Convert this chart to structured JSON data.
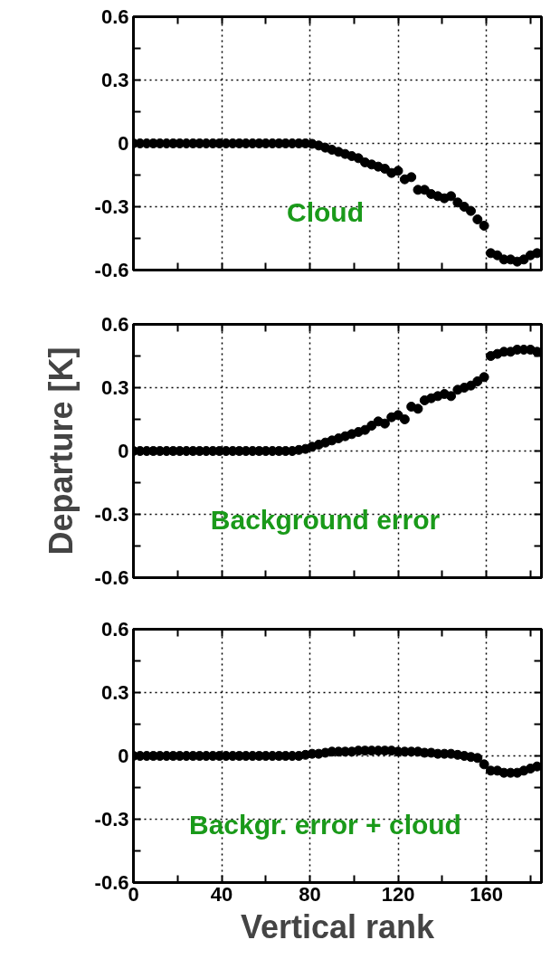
{
  "chart_data": [
    {
      "type": "scatter",
      "annotations": [
        "Cloud"
      ],
      "marker": "circle",
      "grid": true,
      "tick_labels": "y",
      "xlim": [
        0,
        185
      ],
      "ylim": [
        -0.6,
        0.6
      ],
      "xticks": [
        0,
        {
          "value": 20,
          "label": null
        },
        40,
        {
          "value": 60,
          "label": null
        },
        80,
        {
          "value": 100,
          "label": null
        },
        120,
        {
          "value": 140,
          "label": null
        },
        160,
        {
          "value": 180,
          "label": null
        }
      ],
      "yticks": [
        -0.6,
        {
          "value": -0.45,
          "label": null
        },
        -0.3,
        {
          "value": -0.15,
          "label": null
        },
        0,
        {
          "value": 0.15,
          "label": null
        },
        0.3,
        {
          "value": 0.45,
          "label": null
        },
        0.6
      ],
      "x": [
        0,
        3,
        6,
        9,
        12,
        15,
        18,
        21,
        24,
        27,
        30,
        33,
        36,
        39,
        42,
        45,
        48,
        51,
        54,
        57,
        60,
        63,
        66,
        69,
        72,
        75,
        78,
        81,
        84,
        87,
        90,
        93,
        96,
        99,
        102,
        105,
        108,
        111,
        114,
        117,
        120,
        123,
        126,
        129,
        132,
        135,
        138,
        141,
        144,
        147,
        150,
        153,
        156,
        159,
        162,
        165,
        168,
        171,
        174,
        177,
        180,
        183
      ],
      "series": [
        {
          "color": "#000000",
          "values": [
            0,
            0,
            0,
            0,
            0,
            0,
            0,
            0,
            0,
            0,
            0,
            0,
            0,
            0,
            0,
            0,
            0,
            0,
            0,
            0,
            0,
            0,
            0,
            0,
            0,
            0,
            0,
            -0.002,
            -0.01,
            -0.02,
            -0.03,
            -0.04,
            -0.05,
            -0.06,
            -0.07,
            -0.09,
            -0.1,
            -0.11,
            -0.12,
            -0.14,
            -0.13,
            -0.17,
            -0.16,
            -0.22,
            -0.22,
            -0.24,
            -0.25,
            -0.26,
            -0.25,
            -0.28,
            -0.3,
            -0.32,
            -0.36,
            -0.39,
            -0.52,
            -0.53,
            -0.55,
            -0.55,
            -0.56,
            -0.55,
            -0.53,
            -0.52
          ]
        }
      ]
    },
    {
      "type": "scatter",
      "annotations": [
        "Background error"
      ],
      "ylabel": "Departure [K]",
      "marker": "circle",
      "grid": true,
      "tick_labels": "y",
      "xlim": [
        0,
        185
      ],
      "ylim": [
        -0.6,
        0.6
      ],
      "xticks": [
        0,
        {
          "value": 20,
          "label": null
        },
        40,
        {
          "value": 60,
          "label": null
        },
        80,
        {
          "value": 100,
          "label": null
        },
        120,
        {
          "value": 140,
          "label": null
        },
        160,
        {
          "value": 180,
          "label": null
        }
      ],
      "yticks": [
        -0.6,
        {
          "value": -0.45,
          "label": null
        },
        -0.3,
        {
          "value": -0.15,
          "label": null
        },
        0,
        {
          "value": 0.15,
          "label": null
        },
        0.3,
        {
          "value": 0.45,
          "label": null
        },
        0.6
      ],
      "x": [
        0,
        3,
        6,
        9,
        12,
        15,
        18,
        21,
        24,
        27,
        30,
        33,
        36,
        39,
        42,
        45,
        48,
        51,
        54,
        57,
        60,
        63,
        66,
        69,
        72,
        75,
        78,
        81,
        84,
        87,
        90,
        93,
        96,
        99,
        102,
        105,
        108,
        111,
        114,
        117,
        120,
        123,
        126,
        129,
        132,
        135,
        138,
        141,
        144,
        147,
        150,
        153,
        156,
        159,
        162,
        165,
        168,
        171,
        174,
        177,
        180,
        183
      ],
      "series": [
        {
          "color": "#000000",
          "values": [
            0,
            0,
            0,
            0,
            0,
            0,
            0,
            0,
            0,
            0,
            0,
            0,
            0,
            0,
            0,
            0,
            0,
            0,
            0,
            0,
            0,
            0,
            0,
            0,
            0,
            0.005,
            0.01,
            0.02,
            0.03,
            0.04,
            0.05,
            0.06,
            0.07,
            0.08,
            0.09,
            0.1,
            0.12,
            0.14,
            0.13,
            0.16,
            0.17,
            0.15,
            0.21,
            0.2,
            0.24,
            0.25,
            0.26,
            0.27,
            0.26,
            0.29,
            0.3,
            0.31,
            0.33,
            0.35,
            0.45,
            0.46,
            0.47,
            0.47,
            0.48,
            0.48,
            0.48,
            0.47
          ]
        }
      ]
    },
    {
      "type": "scatter",
      "annotations": [
        "Backgr. error + cloud"
      ],
      "xlabel": "Vertical rank",
      "marker": "circle",
      "grid": true,
      "xlim": [
        0,
        185
      ],
      "ylim": [
        -0.6,
        0.6
      ],
      "xticks": [
        0,
        {
          "value": 20,
          "label": null
        },
        40,
        {
          "value": 60,
          "label": null
        },
        80,
        {
          "value": 100,
          "label": null
        },
        120,
        {
          "value": 140,
          "label": null
        },
        160,
        {
          "value": 180,
          "label": null
        }
      ],
      "yticks": [
        -0.6,
        {
          "value": -0.45,
          "label": null
        },
        -0.3,
        {
          "value": -0.15,
          "label": null
        },
        0,
        {
          "value": 0.15,
          "label": null
        },
        0.3,
        {
          "value": 0.45,
          "label": null
        },
        0.6
      ],
      "x": [
        0,
        3,
        6,
        9,
        12,
        15,
        18,
        21,
        24,
        27,
        30,
        33,
        36,
        39,
        42,
        45,
        48,
        51,
        54,
        57,
        60,
        63,
        66,
        69,
        72,
        75,
        78,
        81,
        84,
        87,
        90,
        93,
        96,
        99,
        102,
        105,
        108,
        111,
        114,
        117,
        120,
        123,
        126,
        129,
        132,
        135,
        138,
        141,
        144,
        147,
        150,
        153,
        156,
        159,
        162,
        165,
        168,
        171,
        174,
        177,
        180,
        183
      ],
      "series": [
        {
          "color": "#000000",
          "values": [
            0,
            0,
            0,
            0,
            0,
            0,
            0,
            0,
            0,
            0,
            0,
            0,
            0,
            0,
            0,
            0,
            0,
            0,
            0,
            0,
            0,
            0,
            0,
            0,
            0,
            0,
            0.005,
            0.01,
            0.01,
            0.015,
            0.02,
            0.02,
            0.02,
            0.02,
            0.025,
            0.025,
            0.025,
            0.025,
            0.025,
            0.025,
            0.02,
            0.02,
            0.02,
            0.02,
            0.015,
            0.015,
            0.01,
            0.01,
            0.01,
            0.005,
            0,
            -0.005,
            -0.01,
            -0.04,
            -0.07,
            -0.07,
            -0.08,
            -0.08,
            -0.08,
            -0.07,
            -0.06,
            -0.05
          ]
        }
      ]
    }
  ]
}
